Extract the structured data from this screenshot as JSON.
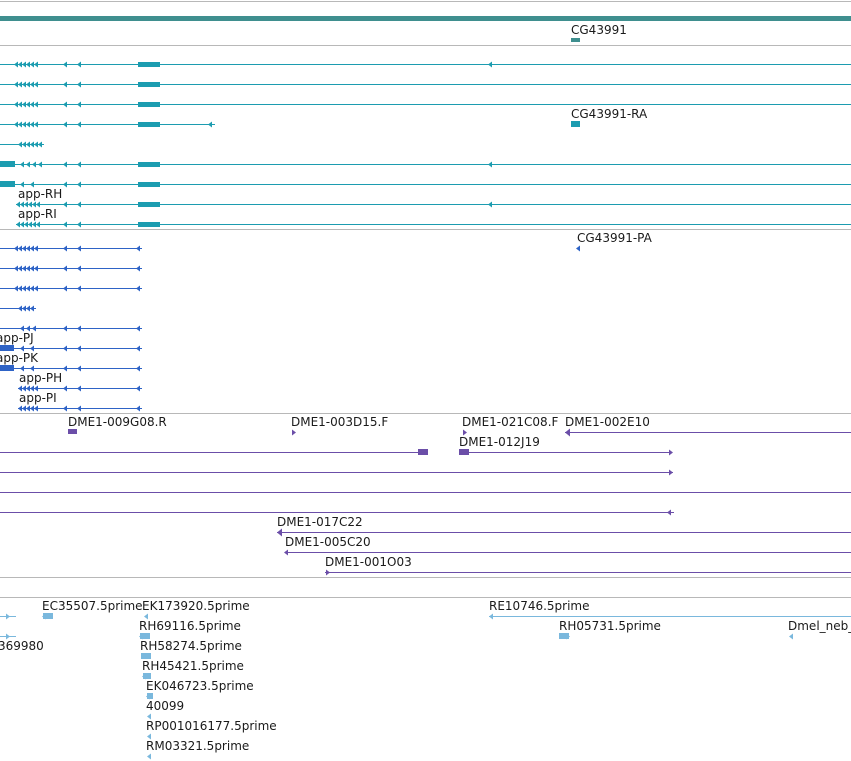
{
  "colors": {
    "gene": "#3f8f8f",
    "transcript": "#1c9cb0",
    "protein": "#2e63c6",
    "clone": "#6b4ea8",
    "est": "#7ab8dd",
    "divider": "#b8b8b8"
  },
  "gene_track": {
    "labels": [
      "CG43991"
    ]
  },
  "transcript_track": {
    "labels": [
      "CG43991-RA",
      "app-RH",
      "app-RI"
    ]
  },
  "protein_track": {
    "labels": [
      "CG43991-PA",
      "app-PJ",
      "app-PK",
      "app-PH",
      "app-PI"
    ]
  },
  "clone_track": {
    "labels": [
      "DME1-009G08.R",
      "DME1-003D15.F",
      "DME1-021C08.F",
      "DME1-002E10",
      "DME1-012J19",
      "DME1-017C22",
      "DME1-005C20",
      "DME1-001O03"
    ]
  },
  "est_track": {
    "labels": [
      "EC35507.5prime",
      "EK173920.5prime",
      "RE10746.5prime",
      "RH69116.5prime",
      "RH05731.5prime",
      "Dmel_neb_",
      "369980",
      "RH58274.5prime",
      "RH45421.5prime",
      "EK046723.5prime",
      "40099",
      "RP001016177.5prime",
      "RM03321.5prime"
    ]
  }
}
